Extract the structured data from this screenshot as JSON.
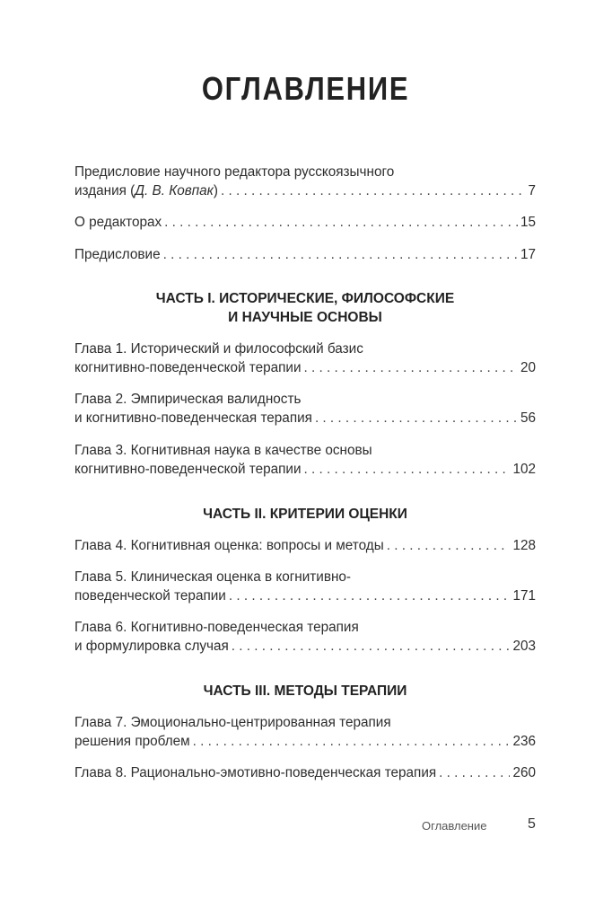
{
  "title": "ОГЛАВЛЕНИЕ",
  "front": [
    {
      "line1": "Предисловие научного редактора русскоязычного",
      "line2_prefix": "издания (",
      "line2_italic": "Д. В. Ковпак",
      "line2_suffix": ")",
      "page": "7"
    },
    {
      "text": "О редакторах",
      "page": "15"
    },
    {
      "text": "Предисловие",
      "page": "17"
    }
  ],
  "parts": [
    {
      "title_line1": "ЧАСТЬ I. ИСТОРИЧЕСКИЕ, ФИЛОСОФСКИЕ",
      "title_line2": "И НАУЧНЫЕ ОСНОВЫ",
      "chapters": [
        {
          "line1": "Глава 1. Исторический и философский базис",
          "line2": "когнитивно-поведенческой терапии",
          "page": "20"
        },
        {
          "line1": "Глава 2. Эмпирическая валидность",
          "line2": "и когнитивно-поведенческая терапия",
          "page": "56"
        },
        {
          "line1": "Глава 3. Когнитивная наука в качестве основы",
          "line2": "когнитивно-поведенческой терапии",
          "page": "102"
        }
      ]
    },
    {
      "title_line1": "ЧАСТЬ II. КРИТЕРИИ ОЦЕНКИ",
      "chapters": [
        {
          "line2": "Глава 4. Когнитивная оценка: вопросы и методы",
          "page": "128"
        },
        {
          "line1": "Глава 5. Клиническая оценка в когнитивно-",
          "line2": "поведенческой терапии",
          "page": "171"
        },
        {
          "line1": "Глава 6. Когнитивно-поведенческая терапия",
          "line2": "и формулировка случая",
          "page": "203"
        }
      ]
    },
    {
      "title_line1": "ЧАСТЬ III. МЕТОДЫ ТЕРАПИИ",
      "chapters": [
        {
          "line1": "Глава 7. Эмоционально-центрированная терапия",
          "line2": "решения проблем",
          "page": "236"
        },
        {
          "line2": "Глава 8. Рационально-эмотивно-поведенческая терапия",
          "page": "260"
        }
      ]
    }
  ],
  "footer": {
    "label": "Оглавление",
    "page_number": "5"
  }
}
